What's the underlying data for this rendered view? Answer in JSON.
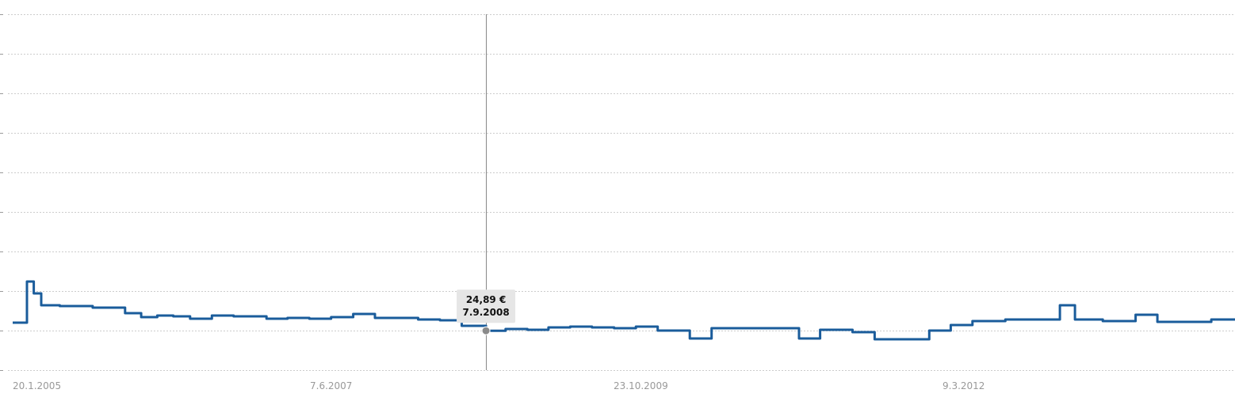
{
  "chart_data": {
    "type": "line",
    "x_axis_type": "date",
    "x_tick_labels": [
      "20.1.2005",
      "7.6.2007",
      "23.10.2009",
      "9.3.2012"
    ],
    "y_range": [
      0,
      225
    ],
    "grid": true,
    "colors": {
      "series": "#1a5c9b",
      "grid": "#cccccc",
      "crosshair": "#888888",
      "tooltip_bg": "#e6e6e6",
      "marker": "#8a8a8a"
    },
    "series": [
      {
        "points": [
          [
            "2005-01-20",
            30.0
          ],
          [
            "2005-03-01",
            56.0
          ],
          [
            "2005-03-20",
            48.5
          ],
          [
            "2005-04-10",
            41.0
          ],
          [
            "2005-06-01",
            40.5
          ],
          [
            "2005-09-01",
            39.5
          ],
          [
            "2005-12-01",
            36.0
          ],
          [
            "2006-01-15",
            33.5
          ],
          [
            "2006-03-01",
            34.5
          ],
          [
            "2006-04-15",
            34.0
          ],
          [
            "2006-06-01",
            32.5
          ],
          [
            "2006-08-01",
            34.5
          ],
          [
            "2006-10-01",
            34.0
          ],
          [
            "2007-01-01",
            32.5
          ],
          [
            "2007-03-01",
            33.0
          ],
          [
            "2007-05-01",
            32.5
          ],
          [
            "2007-07-01",
            33.5
          ],
          [
            "2007-09-01",
            35.5
          ],
          [
            "2007-11-01",
            33.0
          ],
          [
            "2008-01-01",
            33.0
          ],
          [
            "2008-03-01",
            32.0
          ],
          [
            "2008-05-01",
            31.5
          ],
          [
            "2008-07-01",
            28.0
          ],
          [
            "2008-09-07",
            24.89
          ],
          [
            "2008-11-01",
            26.0
          ],
          [
            "2009-01-01",
            25.5
          ],
          [
            "2009-03-01",
            27.0
          ],
          [
            "2009-05-01",
            27.5
          ],
          [
            "2009-07-01",
            27.0
          ],
          [
            "2009-09-01",
            26.5
          ],
          [
            "2009-11-01",
            27.5
          ],
          [
            "2010-01-01",
            25.0
          ],
          [
            "2010-04-01",
            20.0
          ],
          [
            "2010-06-01",
            26.5
          ],
          [
            "2010-09-01",
            26.5
          ],
          [
            "2010-12-01",
            26.5
          ],
          [
            "2011-02-01",
            20.0
          ],
          [
            "2011-04-01",
            25.5
          ],
          [
            "2011-07-01",
            24.0
          ],
          [
            "2011-09-01",
            19.5
          ],
          [
            "2011-12-01",
            19.5
          ],
          [
            "2012-02-01",
            25.0
          ],
          [
            "2012-04-01",
            28.5
          ],
          [
            "2012-06-01",
            31.0
          ],
          [
            "2012-09-01",
            32.0
          ],
          [
            "2012-12-01",
            32.0
          ],
          [
            "2013-02-01",
            41.0
          ],
          [
            "2013-03-15",
            32.0
          ],
          [
            "2013-06-01",
            31.0
          ],
          [
            "2013-09-01",
            35.0
          ],
          [
            "2013-11-01",
            30.5
          ],
          [
            "2014-01-01",
            30.5
          ],
          [
            "2014-04-01",
            32.0
          ],
          [
            "2014-07-01",
            35.5
          ],
          [
            "2014-10-01",
            41.0
          ],
          [
            "2014-12-01",
            37.5
          ],
          [
            "2015-03-01",
            37.5
          ]
        ]
      }
    ],
    "tooltip": {
      "value": "24,89 €",
      "date": "7.9.2008"
    }
  }
}
